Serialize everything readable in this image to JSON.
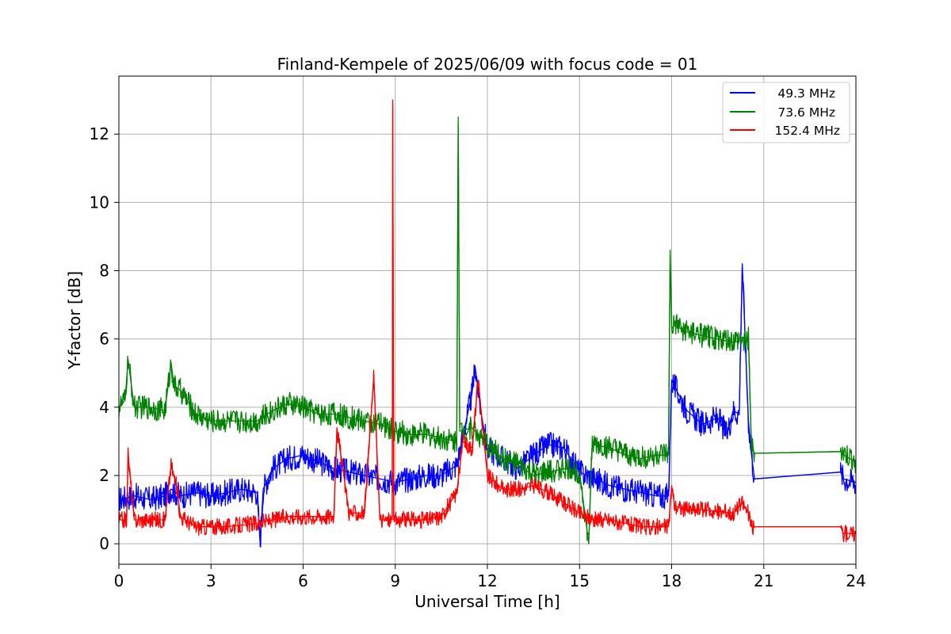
{
  "chart_data": {
    "type": "line",
    "title": "Finland-Kempele of 2025/06/09 with focus code = 01",
    "xlabel": "Universal Time [h]",
    "ylabel": "Y-factor [dB]",
    "xlim": [
      0,
      24
    ],
    "ylim": [
      -0.6,
      13.7
    ],
    "xticks": [
      0,
      3,
      6,
      9,
      12,
      15,
      18,
      21,
      24
    ],
    "yticks": [
      0,
      2,
      4,
      6,
      8,
      10,
      12
    ],
    "grid": true,
    "legend_position": "top-right",
    "series": [
      {
        "name": "49.3 MHz",
        "color": "#0000ff",
        "x": [
          0.0,
          0.5,
          1.0,
          1.5,
          1.7,
          2.0,
          2.5,
          3.0,
          3.5,
          4.0,
          4.5,
          4.6,
          4.7,
          5.0,
          5.5,
          6.0,
          6.5,
          7.0,
          7.5,
          8.0,
          8.5,
          9.0,
          9.5,
          10.0,
          10.5,
          11.0,
          11.5,
          11.6,
          11.8,
          12.0,
          12.5,
          13.0,
          13.5,
          14.0,
          14.5,
          15.0,
          15.5,
          16.0,
          16.5,
          17.0,
          17.5,
          17.9,
          18.0,
          18.1,
          18.5,
          19.0,
          19.5,
          19.8,
          20.0,
          20.2,
          20.3,
          20.5,
          20.6,
          20.7,
          23.5,
          23.6,
          24.0
        ],
        "y": [
          1.3,
          1.4,
          1.3,
          1.4,
          1.6,
          1.4,
          1.5,
          1.4,
          1.5,
          1.6,
          1.5,
          0.0,
          1.6,
          2.2,
          2.5,
          2.6,
          2.4,
          2.2,
          2.1,
          2.0,
          1.9,
          1.8,
          1.9,
          2.0,
          2.0,
          2.3,
          4.4,
          5.2,
          3.8,
          2.8,
          2.5,
          2.2,
          2.6,
          2.9,
          2.8,
          2.1,
          1.9,
          1.7,
          1.6,
          1.5,
          1.4,
          1.4,
          4.8,
          4.6,
          3.9,
          3.5,
          3.7,
          3.2,
          3.9,
          3.8,
          8.2,
          3.6,
          2.6,
          1.9,
          2.1,
          1.9,
          1.8
        ]
      },
      {
        "name": "73.6 MHz",
        "color": "#008000",
        "x": [
          0.0,
          0.2,
          0.3,
          0.5,
          1.0,
          1.5,
          1.7,
          1.8,
          2.0,
          2.5,
          3.0,
          3.5,
          4.0,
          4.5,
          5.0,
          5.5,
          6.0,
          6.5,
          7.0,
          7.5,
          8.0,
          8.5,
          9.0,
          9.5,
          10.0,
          10.5,
          11.0,
          11.05,
          11.1,
          11.5,
          12.0,
          12.5,
          13.0,
          13.5,
          14.0,
          14.5,
          15.0,
          15.3,
          15.4,
          15.5,
          16.0,
          16.5,
          17.0,
          17.5,
          17.9,
          17.95,
          18.0,
          18.1,
          18.5,
          19.0,
          19.5,
          20.0,
          20.5,
          20.6,
          20.7,
          23.5,
          23.6,
          24.0
        ],
        "y": [
          4.0,
          4.2,
          5.4,
          4.0,
          4.0,
          3.9,
          5.3,
          4.6,
          4.5,
          3.8,
          3.6,
          3.6,
          3.6,
          3.6,
          3.9,
          4.1,
          4.0,
          3.8,
          3.8,
          3.7,
          3.6,
          3.5,
          3.3,
          3.2,
          3.2,
          3.1,
          3.0,
          12.5,
          3.3,
          3.4,
          2.9,
          2.5,
          2.3,
          2.0,
          2.1,
          2.2,
          2.1,
          0.0,
          2.8,
          2.9,
          2.8,
          2.6,
          2.5,
          2.6,
          2.6,
          8.6,
          6.3,
          6.4,
          6.2,
          6.1,
          6.0,
          5.9,
          6.0,
          2.8,
          2.65,
          2.7,
          2.6,
          2.4
        ]
      },
      {
        "name": "152.4 MHz",
        "color": "#ff0000",
        "x": [
          0.0,
          0.25,
          0.3,
          0.5,
          1.0,
          1.5,
          1.7,
          1.9,
          2.0,
          2.5,
          3.0,
          3.5,
          4.0,
          4.5,
          5.0,
          5.5,
          6.0,
          6.5,
          7.0,
          7.1,
          7.5,
          8.0,
          8.3,
          8.5,
          8.9,
          8.92,
          8.95,
          9.0,
          9.5,
          10.0,
          10.5,
          11.0,
          11.2,
          11.5,
          11.7,
          12.0,
          12.5,
          13.0,
          13.5,
          14.0,
          14.5,
          15.0,
          15.5,
          16.0,
          16.5,
          17.0,
          17.5,
          17.9,
          18.0,
          18.1,
          18.5,
          19.0,
          19.5,
          20.0,
          20.3,
          20.5,
          20.6,
          20.7,
          23.5,
          23.6,
          24.0
        ],
        "y": [
          0.7,
          0.7,
          2.6,
          0.7,
          0.7,
          0.7,
          2.3,
          1.6,
          0.8,
          0.5,
          0.5,
          0.5,
          0.55,
          0.6,
          0.7,
          0.8,
          0.8,
          0.8,
          0.8,
          3.4,
          0.9,
          0.9,
          4.9,
          0.7,
          0.7,
          13.0,
          0.7,
          0.7,
          0.7,
          0.7,
          0.8,
          1.5,
          3.0,
          2.8,
          4.8,
          2.0,
          1.6,
          1.6,
          1.7,
          1.5,
          1.2,
          0.9,
          0.7,
          0.7,
          0.6,
          0.5,
          0.5,
          0.5,
          1.7,
          1.1,
          1.0,
          1.0,
          0.95,
          0.9,
          1.2,
          0.9,
          0.5,
          0.5,
          0.5,
          0.3,
          0.3
        ]
      }
    ]
  }
}
